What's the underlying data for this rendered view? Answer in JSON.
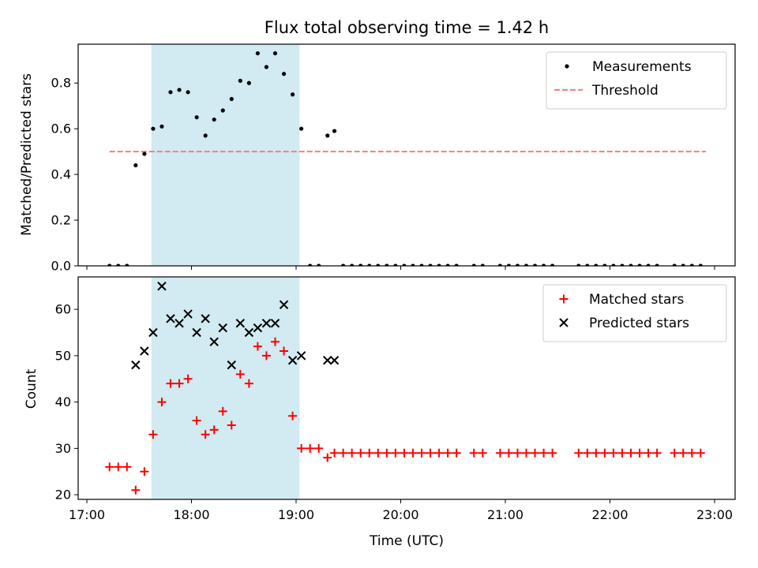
{
  "chart_data": [
    {
      "type": "scatter",
      "title": "Flux total observing time = 1.42 h",
      "xlabel": "",
      "ylabel": "Matched/Predicted stars",
      "xlim": [
        "17:00",
        "23:00"
      ],
      "ylim": [
        0,
        0.97
      ],
      "yticks": [
        "0.0",
        "0.2",
        "0.4",
        "0.6",
        "0.8"
      ],
      "xticks": [
        "17:00",
        "18:00",
        "19:00",
        "20:00",
        "21:00",
        "22:00",
        "23:00"
      ],
      "grid": false,
      "legend_position": "top-right",
      "shaded_span": {
        "start": "17:37",
        "end": "19:02",
        "color": "#add8e6"
      },
      "threshold": {
        "name": "Threshold",
        "value": 0.5,
        "x_start": "17:13",
        "x_end": "22:55",
        "color": "#f08080",
        "style": "dashed"
      },
      "series": [
        {
          "name": "Measurements",
          "color": "#000000",
          "marker": "dot",
          "points": [
            [
              "17:13",
              0
            ],
            [
              "17:18",
              0
            ],
            [
              "17:23",
              0
            ],
            [
              "17:28",
              0.44
            ],
            [
              "17:33",
              0.49
            ],
            [
              "17:38",
              0.6
            ],
            [
              "17:43",
              0.61
            ],
            [
              "17:48",
              0.76
            ],
            [
              "17:53",
              0.77
            ],
            [
              "17:58",
              0.76
            ],
            [
              "18:03",
              0.65
            ],
            [
              "18:08",
              0.57
            ],
            [
              "18:13",
              0.64
            ],
            [
              "18:18",
              0.68
            ],
            [
              "18:23",
              0.73
            ],
            [
              "18:28",
              0.81
            ],
            [
              "18:33",
              0.8
            ],
            [
              "18:38",
              0.93
            ],
            [
              "18:43",
              0.87
            ],
            [
              "18:48",
              0.93
            ],
            [
              "18:53",
              0.84
            ],
            [
              "18:58",
              0.75
            ],
            [
              "19:03",
              0.6
            ],
            [
              "19:08",
              0
            ],
            [
              "19:13",
              0
            ],
            [
              "19:18",
              0.57
            ],
            [
              "19:22",
              0.59
            ],
            [
              "19:27",
              0
            ],
            [
              "19:32",
              0
            ],
            [
              "19:37",
              0
            ],
            [
              "19:42",
              0
            ],
            [
              "19:47",
              0
            ],
            [
              "19:52",
              0
            ],
            [
              "19:57",
              0
            ],
            [
              "20:02",
              0
            ],
            [
              "20:07",
              0
            ],
            [
              "20:12",
              0
            ],
            [
              "20:17",
              0
            ],
            [
              "20:22",
              0
            ],
            [
              "20:27",
              0
            ],
            [
              "20:32",
              0
            ],
            [
              "20:42",
              0
            ],
            [
              "20:47",
              0
            ],
            [
              "20:57",
              0
            ],
            [
              "21:02",
              0
            ],
            [
              "21:07",
              0
            ],
            [
              "21:12",
              0
            ],
            [
              "21:17",
              0
            ],
            [
              "21:22",
              0
            ],
            [
              "21:27",
              0
            ],
            [
              "21:42",
              0
            ],
            [
              "21:47",
              0
            ],
            [
              "21:52",
              0
            ],
            [
              "21:57",
              0
            ],
            [
              "22:02",
              0
            ],
            [
              "22:07",
              0
            ],
            [
              "22:12",
              0
            ],
            [
              "22:17",
              0
            ],
            [
              "22:22",
              0
            ],
            [
              "22:27",
              0
            ],
            [
              "22:37",
              0
            ],
            [
              "22:42",
              0
            ],
            [
              "22:47",
              0
            ],
            [
              "22:52",
              0
            ]
          ]
        }
      ]
    },
    {
      "type": "scatter",
      "title": "",
      "xlabel": "Time (UTC)",
      "ylabel": "Count",
      "xlim": [
        "17:00",
        "23:00"
      ],
      "ylim": [
        19,
        67
      ],
      "yticks": [
        "20",
        "30",
        "40",
        "50",
        "60"
      ],
      "xticks": [
        "17:00",
        "18:00",
        "19:00",
        "20:00",
        "21:00",
        "22:00",
        "23:00"
      ],
      "grid": false,
      "legend_position": "top-right",
      "shaded_span": {
        "start": "17:37",
        "end": "19:02",
        "color": "#add8e6"
      },
      "series": [
        {
          "name": "Matched stars",
          "color": "#ff0000",
          "marker": "plus",
          "points": [
            [
              "17:13",
              26
            ],
            [
              "17:18",
              26
            ],
            [
              "17:23",
              26
            ],
            [
              "17:28",
              21
            ],
            [
              "17:33",
              25
            ],
            [
              "17:38",
              33
            ],
            [
              "17:43",
              40
            ],
            [
              "17:48",
              44
            ],
            [
              "17:53",
              44
            ],
            [
              "17:58",
              45
            ],
            [
              "18:03",
              36
            ],
            [
              "18:08",
              33
            ],
            [
              "18:13",
              34
            ],
            [
              "18:18",
              38
            ],
            [
              "18:23",
              35
            ],
            [
              "18:28",
              46
            ],
            [
              "18:33",
              44
            ],
            [
              "18:38",
              52
            ],
            [
              "18:43",
              50
            ],
            [
              "18:48",
              53
            ],
            [
              "18:53",
              51
            ],
            [
              "18:58",
              37
            ],
            [
              "19:03",
              30
            ],
            [
              "19:08",
              30
            ],
            [
              "19:13",
              30
            ],
            [
              "19:18",
              28
            ],
            [
              "19:22",
              29
            ],
            [
              "19:27",
              29
            ],
            [
              "19:32",
              29
            ],
            [
              "19:37",
              29
            ],
            [
              "19:42",
              29
            ],
            [
              "19:47",
              29
            ],
            [
              "19:52",
              29
            ],
            [
              "19:57",
              29
            ],
            [
              "20:02",
              29
            ],
            [
              "20:07",
              29
            ],
            [
              "20:12",
              29
            ],
            [
              "20:17",
              29
            ],
            [
              "20:22",
              29
            ],
            [
              "20:27",
              29
            ],
            [
              "20:32",
              29
            ],
            [
              "20:42",
              29
            ],
            [
              "20:47",
              29
            ],
            [
              "20:57",
              29
            ],
            [
              "21:02",
              29
            ],
            [
              "21:07",
              29
            ],
            [
              "21:12",
              29
            ],
            [
              "21:17",
              29
            ],
            [
              "21:22",
              29
            ],
            [
              "21:27",
              29
            ],
            [
              "21:42",
              29
            ],
            [
              "21:47",
              29
            ],
            [
              "21:52",
              29
            ],
            [
              "21:57",
              29
            ],
            [
              "22:02",
              29
            ],
            [
              "22:07",
              29
            ],
            [
              "22:12",
              29
            ],
            [
              "22:17",
              29
            ],
            [
              "22:22",
              29
            ],
            [
              "22:27",
              29
            ],
            [
              "22:37",
              29
            ],
            [
              "22:42",
              29
            ],
            [
              "22:47",
              29
            ],
            [
              "22:52",
              29
            ]
          ]
        },
        {
          "name": "Predicted stars",
          "color": "#000000",
          "marker": "x",
          "points": [
            [
              "17:28",
              48
            ],
            [
              "17:33",
              51
            ],
            [
              "17:38",
              55
            ],
            [
              "17:43",
              65
            ],
            [
              "17:48",
              58
            ],
            [
              "17:53",
              57
            ],
            [
              "17:58",
              59
            ],
            [
              "18:03",
              55
            ],
            [
              "18:08",
              58
            ],
            [
              "18:13",
              53
            ],
            [
              "18:18",
              56
            ],
            [
              "18:23",
              48
            ],
            [
              "18:28",
              57
            ],
            [
              "18:33",
              55
            ],
            [
              "18:38",
              56
            ],
            [
              "18:43",
              57
            ],
            [
              "18:48",
              57
            ],
            [
              "18:53",
              61
            ],
            [
              "18:58",
              49
            ],
            [
              "19:03",
              50
            ],
            [
              "19:18",
              49
            ],
            [
              "19:22",
              49
            ]
          ]
        }
      ]
    }
  ]
}
